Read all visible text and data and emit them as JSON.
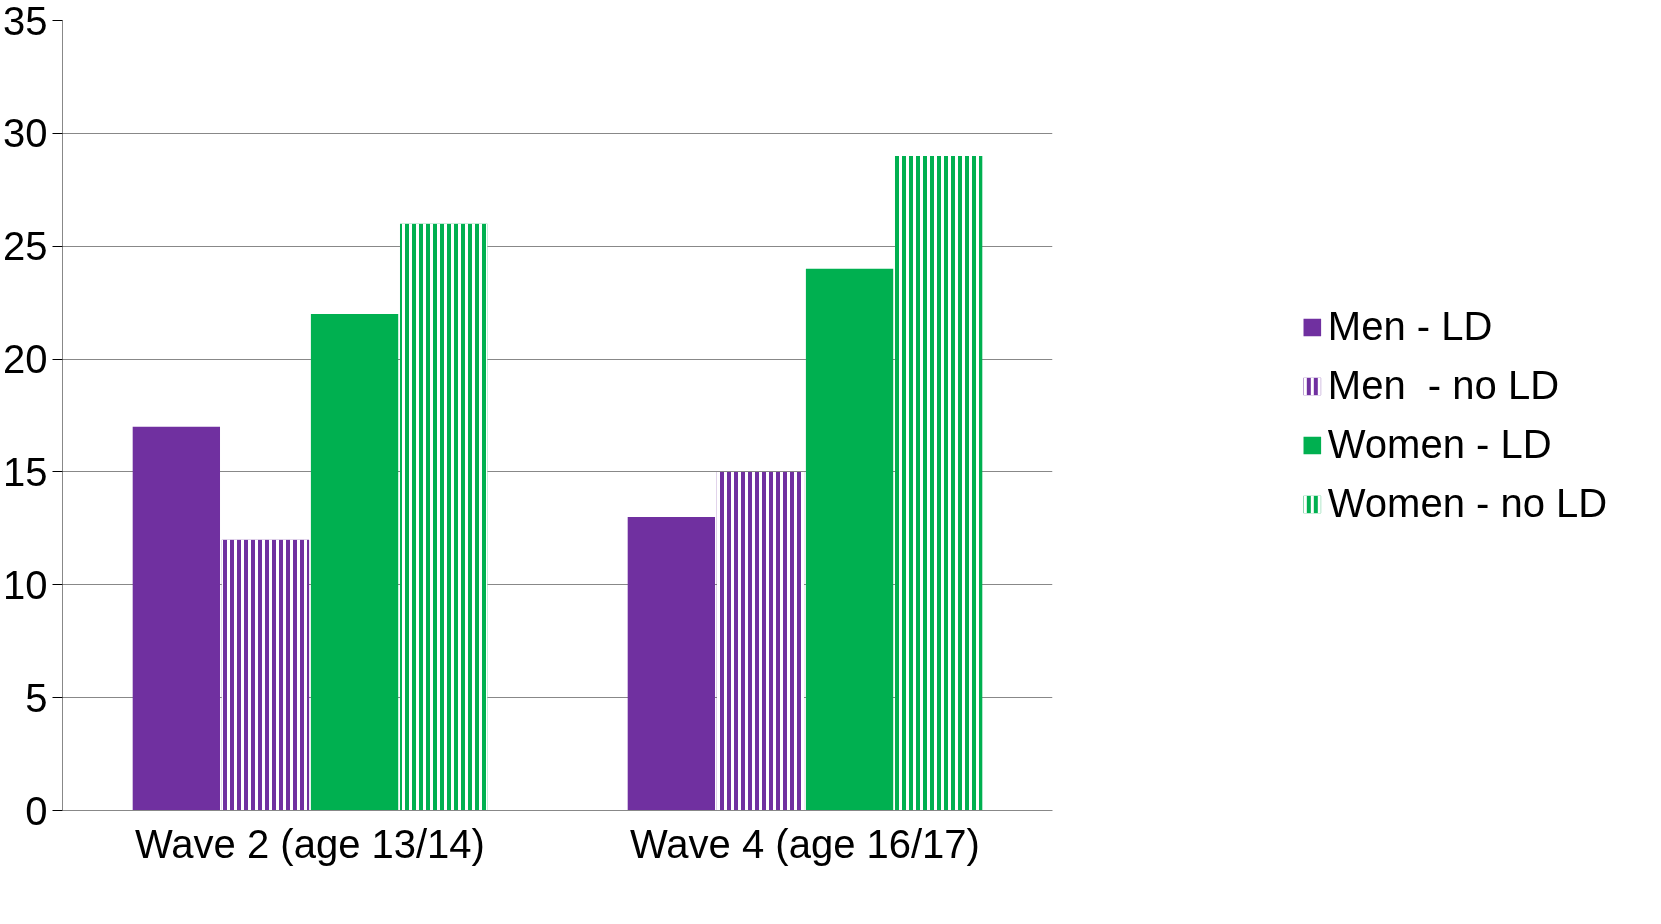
{
  "chart_data": {
    "type": "bar",
    "categories": [
      "Wave 2 (age 13/14)",
      "Wave 4 (age 16/17)"
    ],
    "series": [
      {
        "name": "Men - LD",
        "color": "#7030a0",
        "values": [
          17,
          13
        ]
      },
      {
        "name": "Men  - no LD",
        "color": "#7030a0",
        "values": [
          12,
          15
        ]
      },
      {
        "name": "Women - LD",
        "color": "#00b050",
        "values": [
          22,
          24
        ]
      },
      {
        "name": "Women - no LD",
        "color": "#00b050",
        "values": [
          26,
          29
        ]
      }
    ],
    "ylim": [
      0,
      35
    ],
    "yticks": [
      0,
      5,
      10,
      15,
      20,
      25,
      30,
      35
    ],
    "grid": "y",
    "legend": "right"
  }
}
